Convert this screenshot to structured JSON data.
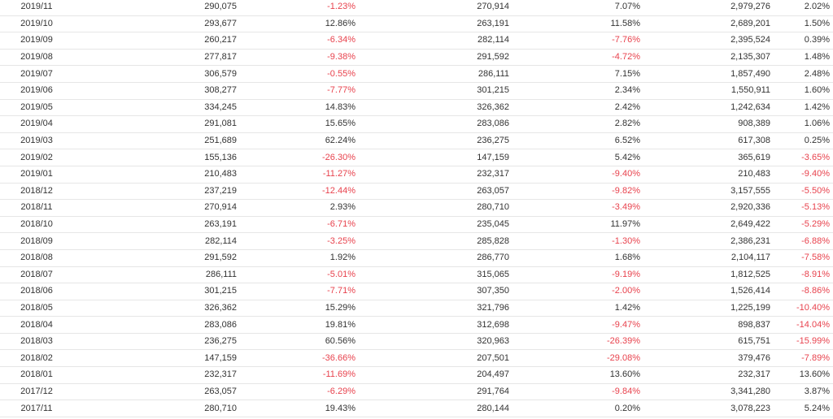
{
  "table": {
    "rows": [
      {
        "month": "2019/11",
        "v1": "290,075",
        "p1": "-1.23%",
        "v2": "270,914",
        "p2": "7.07%",
        "v3": "2,979,276",
        "p3": "2.02%"
      },
      {
        "month": "2019/10",
        "v1": "293,677",
        "p1": "12.86%",
        "v2": "263,191",
        "p2": "11.58%",
        "v3": "2,689,201",
        "p3": "1.50%"
      },
      {
        "month": "2019/09",
        "v1": "260,217",
        "p1": "-6.34%",
        "v2": "282,114",
        "p2": "-7.76%",
        "v3": "2,395,524",
        "p3": "0.39%"
      },
      {
        "month": "2019/08",
        "v1": "277,817",
        "p1": "-9.38%",
        "v2": "291,592",
        "p2": "-4.72%",
        "v3": "2,135,307",
        "p3": "1.48%"
      },
      {
        "month": "2019/07",
        "v1": "306,579",
        "p1": "-0.55%",
        "v2": "286,111",
        "p2": "7.15%",
        "v3": "1,857,490",
        "p3": "2.48%"
      },
      {
        "month": "2019/06",
        "v1": "308,277",
        "p1": "-7.77%",
        "v2": "301,215",
        "p2": "2.34%",
        "v3": "1,550,911",
        "p3": "1.60%"
      },
      {
        "month": "2019/05",
        "v1": "334,245",
        "p1": "14.83%",
        "v2": "326,362",
        "p2": "2.42%",
        "v3": "1,242,634",
        "p3": "1.42%"
      },
      {
        "month": "2019/04",
        "v1": "291,081",
        "p1": "15.65%",
        "v2": "283,086",
        "p2": "2.82%",
        "v3": "908,389",
        "p3": "1.06%"
      },
      {
        "month": "2019/03",
        "v1": "251,689",
        "p1": "62.24%",
        "v2": "236,275",
        "p2": "6.52%",
        "v3": "617,308",
        "p3": "0.25%"
      },
      {
        "month": "2019/02",
        "v1": "155,136",
        "p1": "-26.30%",
        "v2": "147,159",
        "p2": "5.42%",
        "v3": "365,619",
        "p3": "-3.65%"
      },
      {
        "month": "2019/01",
        "v1": "210,483",
        "p1": "-11.27%",
        "v2": "232,317",
        "p2": "-9.40%",
        "v3": "210,483",
        "p3": "-9.40%"
      },
      {
        "month": "2018/12",
        "v1": "237,219",
        "p1": "-12.44%",
        "v2": "263,057",
        "p2": "-9.82%",
        "v3": "3,157,555",
        "p3": "-5.50%"
      },
      {
        "month": "2018/11",
        "v1": "270,914",
        "p1": "2.93%",
        "v2": "280,710",
        "p2": "-3.49%",
        "v3": "2,920,336",
        "p3": "-5.13%"
      },
      {
        "month": "2018/10",
        "v1": "263,191",
        "p1": "-6.71%",
        "v2": "235,045",
        "p2": "11.97%",
        "v3": "2,649,422",
        "p3": "-5.29%"
      },
      {
        "month": "2018/09",
        "v1": "282,114",
        "p1": "-3.25%",
        "v2": "285,828",
        "p2": "-1.30%",
        "v3": "2,386,231",
        "p3": "-6.88%"
      },
      {
        "month": "2018/08",
        "v1": "291,592",
        "p1": "1.92%",
        "v2": "286,770",
        "p2": "1.68%",
        "v3": "2,104,117",
        "p3": "-7.58%"
      },
      {
        "month": "2018/07",
        "v1": "286,111",
        "p1": "-5.01%",
        "v2": "315,065",
        "p2": "-9.19%",
        "v3": "1,812,525",
        "p3": "-8.91%"
      },
      {
        "month": "2018/06",
        "v1": "301,215",
        "p1": "-7.71%",
        "v2": "307,350",
        "p2": "-2.00%",
        "v3": "1,526,414",
        "p3": "-8.86%"
      },
      {
        "month": "2018/05",
        "v1": "326,362",
        "p1": "15.29%",
        "v2": "321,796",
        "p2": "1.42%",
        "v3": "1,225,199",
        "p3": "-10.40%"
      },
      {
        "month": "2018/04",
        "v1": "283,086",
        "p1": "19.81%",
        "v2": "312,698",
        "p2": "-9.47%",
        "v3": "898,837",
        "p3": "-14.04%"
      },
      {
        "month": "2018/03",
        "v1": "236,275",
        "p1": "60.56%",
        "v2": "320,963",
        "p2": "-26.39%",
        "v3": "615,751",
        "p3": "-15.99%"
      },
      {
        "month": "2018/02",
        "v1": "147,159",
        "p1": "-36.66%",
        "v2": "207,501",
        "p2": "-29.08%",
        "v3": "379,476",
        "p3": "-7.89%"
      },
      {
        "month": "2018/01",
        "v1": "232,317",
        "p1": "-11.69%",
        "v2": "204,497",
        "p2": "13.60%",
        "v3": "232,317",
        "p3": "13.60%"
      },
      {
        "month": "2017/12",
        "v1": "263,057",
        "p1": "-6.29%",
        "v2": "291,764",
        "p2": "-9.84%",
        "v3": "3,341,280",
        "p3": "3.87%"
      },
      {
        "month": "2017/11",
        "v1": "280,710",
        "p1": "19.43%",
        "v2": "280,144",
        "p2": "0.20%",
        "v3": "3,078,223",
        "p3": "5.24%"
      }
    ]
  }
}
